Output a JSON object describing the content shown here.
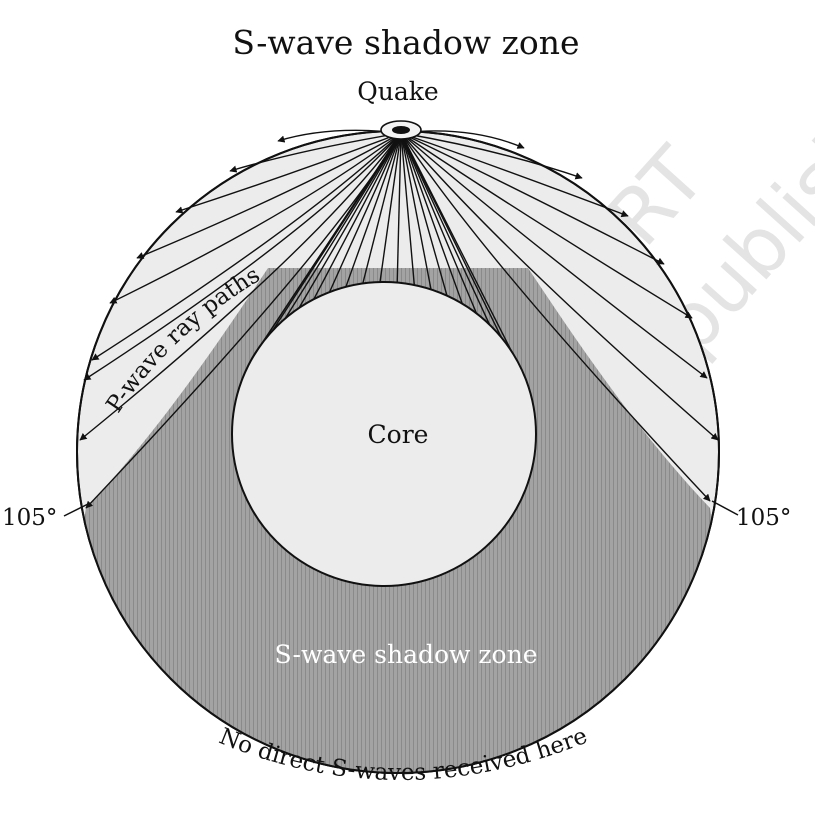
{
  "title": "S-wave shadow zone",
  "quake_label": "Quake",
  "core_label": "Core",
  "shadow_zone_label": "S-wave shadow zone",
  "ray_paths_label": "P-wave ray paths",
  "left_angle_label": "105°",
  "right_angle_label": "105°",
  "bottom_note": "No direct S-waves received here",
  "watermark": {
    "line1": "© NCERT",
    "line2": "not to be republished"
  },
  "colors": {
    "mantle_fill": "#ececec",
    "core_fill": "#ececec",
    "shadow_fill": "#a3a3a3",
    "shadow_hatch": "#8a8a8a",
    "line": "#111111",
    "watermark": "#e4e4e4"
  }
}
